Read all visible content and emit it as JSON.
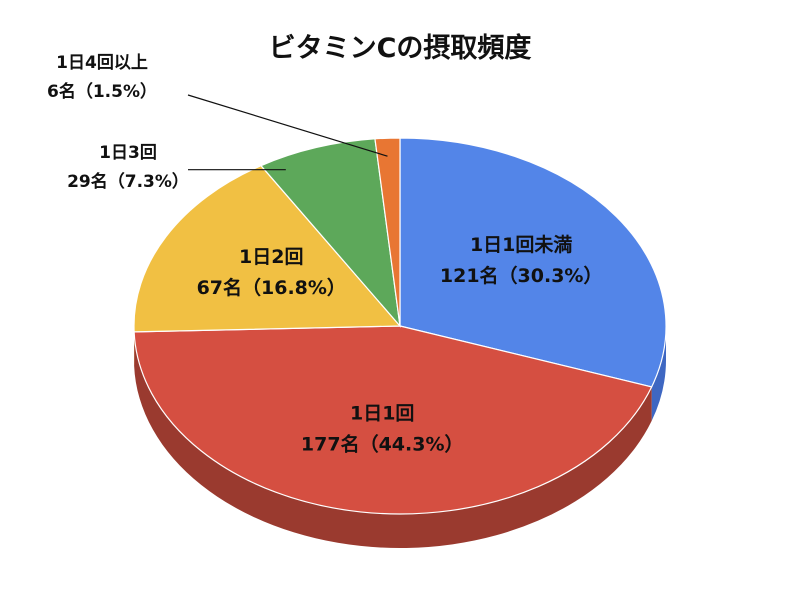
{
  "chart_data": {
    "type": "pie",
    "title": "ビタミンCの摂取頻度",
    "three_d": true,
    "slices": [
      {
        "category": "1日1回未満",
        "value": 121,
        "percent": 30.3,
        "value_label": "121名（30.3%）",
        "color": "#5385e8"
      },
      {
        "category": "1日1回",
        "value": 177,
        "percent": 44.3,
        "value_label": "177名（44.3%）",
        "color": "#d54f41"
      },
      {
        "category": "1日2回",
        "value": 67,
        "percent": 16.8,
        "value_label": "67名（16.8%）",
        "color": "#f1c043"
      },
      {
        "category": "1日3回",
        "value": 29,
        "percent": 7.3,
        "value_label": "29名（7.3%）",
        "color": "#5da85a"
      },
      {
        "category": "1日4回以上",
        "value": 6,
        "percent": 1.5,
        "value_label": "6名（1.5%）",
        "color": "#e87633"
      }
    ]
  },
  "colors": {
    "side_1日1回未満": "#3e67c2",
    "side_1日1回": "#9a3a2f",
    "leader_line": "#111111"
  }
}
